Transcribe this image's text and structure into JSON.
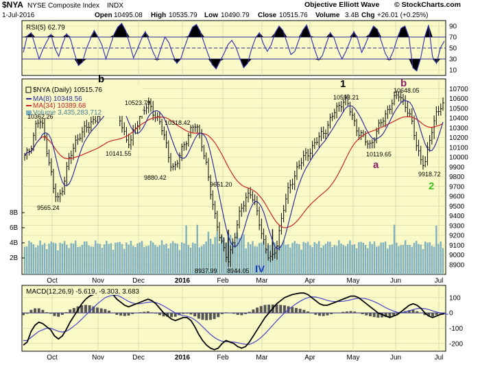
{
  "header": {
    "symbol": "$NYA",
    "name": "NYSE Composite Index",
    "exchange": "INDX",
    "date": "1-Jul-2016",
    "open_label": "Open",
    "open": "10495.08",
    "high_label": "High",
    "high": "10535.79",
    "low_label": "Low",
    "low": "10490.79",
    "close_label": "Close",
    "close": "10515.76",
    "volume_label": "Volume",
    "volume": "3.4B",
    "chg_label": "Chg",
    "chg": "+26.01 (+0.25%)",
    "source": "Objective Elliott Wave",
    "watermark": "© StockCharts.com"
  },
  "colors": {
    "panel_bg": "#fafac8",
    "grid": "#c8c8a0",
    "price_bars": "#000000",
    "ma8": "#2c2c9a",
    "ma34": "#cc2222",
    "volume": "#7fb0c0",
    "rsi_line": "#3838b0",
    "rsi_fill": "#000000",
    "macd_line": "#000000",
    "signal_line": "#4444cc",
    "histogram": "#555555",
    "wave_black": "#000000",
    "wave_purple": "#8b1a6b",
    "wave_green": "#3cbf1c",
    "wave_blue": "#1a3fbf"
  },
  "chart_data": [
    {
      "type": "line",
      "panel": "rsi",
      "title": "RSI(5) 62.79",
      "ylim": [
        0,
        100
      ],
      "yticks": [
        10,
        30,
        50,
        70,
        90
      ],
      "levels": [
        30,
        50,
        70
      ],
      "series": [
        {
          "name": "RSI(5)",
          "values": [
            42,
            72,
            78,
            55,
            30,
            48,
            62,
            75,
            50,
            35,
            58,
            76,
            66,
            40,
            18,
            24,
            48,
            66,
            82,
            70,
            55,
            30,
            52,
            74,
            88,
            95,
            82,
            58,
            32,
            48,
            66,
            80,
            62,
            42,
            28,
            50,
            70,
            60,
            38,
            22,
            30,
            52,
            72,
            88,
            93,
            80,
            58,
            38,
            20,
            12,
            26,
            40,
            56,
            64,
            52,
            32,
            14,
            22,
            48,
            68,
            78,
            58,
            44,
            56,
            78,
            90,
            82,
            60,
            38,
            44,
            64,
            82,
            92,
            72,
            48,
            28,
            36,
            58,
            78,
            68,
            46,
            30,
            44,
            62,
            80,
            66,
            42,
            58,
            76,
            90,
            84,
            62,
            40,
            28,
            44,
            66,
            86,
            90,
            70,
            14,
            8,
            32,
            70,
            92,
            34,
            22,
            50,
            62.79
          ]
        }
      ]
    },
    {
      "type": "line",
      "panel": "price",
      "title": "$NYA (Daily) 10515.76",
      "x_ticks": [
        "Oct",
        "Nov",
        "Dec",
        "2016",
        "Feb",
        "Mar",
        "Apr",
        "May",
        "Jun",
        "Jul"
      ],
      "ylim": [
        8800,
        10800
      ],
      "yticks": [
        8900,
        9000,
        9100,
        9200,
        9300,
        9400,
        9500,
        9600,
        9700,
        9800,
        9900,
        10000,
        10100,
        10200,
        10300,
        10400,
        10500,
        10600,
        10700
      ],
      "series": [
        {
          "name": "$NYA",
          "values": [
            10000,
            10050,
            10150,
            10320,
            10380,
            10300,
            10100,
            9900,
            9650,
            9565,
            9620,
            9800,
            9950,
            10050,
            10150,
            10230,
            10260,
            10300,
            10330,
            10390,
            10430,
            10480,
            10560,
            10600,
            10620,
            10520,
            10400,
            10300,
            10180,
            10142,
            10250,
            10350,
            10460,
            10500,
            10524,
            10480,
            10420,
            10380,
            10250,
            10100,
            9950,
            9880,
            9950,
            10050,
            10150,
            10230,
            10300,
            10318,
            10240,
            10100,
            9900,
            9650,
            9450,
            9300,
            9150,
            9000,
            8938,
            9100,
            9250,
            9400,
            9500,
            9600,
            9651,
            9550,
            9400,
            9250,
            9100,
            8990,
            8944,
            9050,
            9250,
            9450,
            9600,
            9700,
            9800,
            9900,
            9950,
            10000,
            10050,
            10100,
            10150,
            10200,
            10250,
            10300,
            10380,
            10450,
            10500,
            10560,
            10593,
            10520,
            10420,
            10320,
            10250,
            10200,
            10150,
            10120,
            10200,
            10280,
            10350,
            10420,
            10500,
            10560,
            10600,
            10648,
            10580,
            10500,
            10400,
            10250,
            10100,
            9960,
            9919,
            10100,
            10300,
            10440,
            10490,
            10516
          ]
        },
        {
          "name": "MA(8) 10348.56",
          "values": []
        },
        {
          "name": "MA(34) 10389.68",
          "values": []
        }
      ],
      "volume": {
        "label": "Volume 3,435,283,712",
        "yticks": [
          "2B",
          "4B",
          "6B",
          "8B"
        ]
      },
      "annotations": [
        {
          "text": "10362.26"
        },
        {
          "text": "9565.24"
        },
        {
          "text": "10141.55"
        },
        {
          "text": "10523.79"
        },
        {
          "text": "9880.42"
        },
        {
          "text": "10318.42"
        },
        {
          "text": "8937.99"
        },
        {
          "text": "9651.20"
        },
        {
          "text": "8944.05"
        },
        {
          "text": "10593.21"
        },
        {
          "text": "10119.65"
        },
        {
          "text": "10648.05"
        },
        {
          "text": "9918.72"
        }
      ],
      "wave_labels": [
        "b",
        "1",
        "b",
        "a",
        "2",
        "IV"
      ]
    },
    {
      "type": "line",
      "panel": "macd",
      "title": "MACD(12,26,9) -5.619, -9.303, 3.683",
      "ylim": [
        -250,
        180
      ],
      "yticks": [
        -200,
        -100,
        0,
        100
      ],
      "series": [
        {
          "name": "MACD",
          "values": [
            -210,
            -190,
            -120,
            -80,
            -60,
            -70,
            -90,
            -110,
            -150,
            -170,
            -150,
            -110,
            -60,
            -20,
            20,
            60,
            90,
            110,
            120,
            130,
            140,
            150,
            140,
            120,
            90,
            70,
            50,
            40,
            50,
            60,
            70,
            80,
            90,
            80,
            60,
            30,
            0,
            -20,
            -40,
            -50,
            -40,
            -30,
            -30,
            -50,
            -90,
            -140,
            -180,
            -210,
            -230,
            -240,
            -230,
            -200,
            -180,
            -190,
            -200,
            -220,
            -230,
            -220,
            -190,
            -150,
            -110,
            -70,
            -30,
            0,
            30,
            60,
            80,
            100,
            110,
            120,
            125,
            130,
            130,
            120,
            100,
            80,
            60,
            50,
            50,
            60,
            70,
            80,
            90,
            100,
            110,
            110,
            100,
            80,
            60,
            40,
            20,
            0,
            -10,
            -20,
            -30,
            -20,
            -10,
            10,
            30,
            50,
            60,
            50,
            30,
            0,
            -20,
            -30,
            -20,
            -10,
            -5.6
          ]
        },
        {
          "name": "Signal",
          "values": [
            -180,
            -180,
            -160,
            -140,
            -120,
            -110,
            -100,
            -100,
            -110,
            -120,
            -125,
            -120,
            -105,
            -85,
            -65,
            -40,
            -15,
            10,
            35,
            60,
            80,
            100,
            110,
            115,
            115,
            105,
            90,
            75,
            65,
            60,
            60,
            65,
            70,
            72,
            68,
            58,
            45,
            30,
            15,
            0,
            -10,
            -18,
            -22,
            -30,
            -45,
            -65,
            -90,
            -115,
            -140,
            -160,
            -175,
            -185,
            -188,
            -188,
            -190,
            -195,
            -200,
            -205,
            -205,
            -195,
            -180,
            -160,
            -135,
            -108,
            -80,
            -52,
            -25,
            0,
            22,
            42,
            60,
            76,
            90,
            100,
            105,
            104,
            98,
            90,
            82,
            76,
            74,
            74,
            76,
            80,
            86,
            92,
            96,
            96,
            92,
            84,
            74,
            62,
            48,
            34,
            22,
            12,
            4,
            2,
            6,
            14,
            22,
            28,
            30,
            28,
            22,
            14,
            6,
            0,
            -5,
            -9.3
          ]
        }
      ]
    }
  ]
}
